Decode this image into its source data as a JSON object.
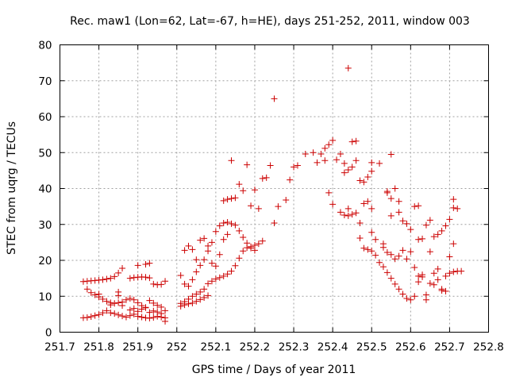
{
  "chart_data": {
    "type": "scatter",
    "title": "Rec. maw1 (Lon=62, Lat=-67, h=HE), days 251-252, 2011, window 003",
    "xlabel": "GPS time / Days of year 2011",
    "ylabel": "STEC from uqrg / TECUs",
    "xlim": [
      251.7,
      252.8
    ],
    "ylim": [
      0,
      80
    ],
    "xticks": [
      "251.7",
      "251.8",
      "251.9",
      "252",
      "252.1",
      "252.2",
      "252.3",
      "252.4",
      "252.5",
      "252.6",
      "252.7",
      "252.8"
    ],
    "yticks": [
      "0",
      "10",
      "20",
      "30",
      "40",
      "50",
      "60",
      "70",
      "80"
    ],
    "grid": true,
    "marker": "+",
    "color": "#cc0000",
    "series": [
      {
        "points": [
          [
            251.76,
            14.1
          ],
          [
            251.77,
            14.2
          ],
          [
            251.78,
            14.3
          ],
          [
            251.79,
            14.4
          ],
          [
            251.8,
            14.5
          ],
          [
            251.81,
            14.6
          ],
          [
            251.82,
            14.8
          ],
          [
            251.83,
            15.0
          ],
          [
            251.84,
            15.5
          ],
          [
            251.85,
            16.5
          ],
          [
            251.86,
            17.8
          ],
          [
            251.88,
            15.0
          ],
          [
            251.89,
            15.2
          ],
          [
            251.9,
            15.3
          ],
          [
            251.91,
            15.4
          ],
          [
            251.92,
            15.3
          ],
          [
            251.93,
            15.1
          ],
          [
            251.94,
            13.4
          ],
          [
            251.95,
            13.2
          ],
          [
            251.96,
            13.3
          ],
          [
            251.97,
            14.2
          ],
          [
            251.9,
            18.6
          ],
          [
            251.92,
            18.9
          ],
          [
            251.93,
            19.2
          ],
          [
            251.77,
            12.0
          ],
          [
            251.78,
            11.0
          ],
          [
            251.79,
            10.4
          ],
          [
            251.8,
            9.8
          ],
          [
            251.8,
            10.6
          ],
          [
            251.81,
            9.2
          ],
          [
            251.82,
            8.6
          ],
          [
            251.83,
            8.2
          ],
          [
            251.83,
            7.6
          ],
          [
            251.84,
            8.0
          ],
          [
            251.85,
            10.2
          ],
          [
            251.85,
            11.2
          ],
          [
            251.86,
            8.4
          ],
          [
            251.87,
            9.0
          ],
          [
            251.88,
            9.4
          ],
          [
            251.89,
            9.0
          ],
          [
            251.9,
            8.2
          ],
          [
            251.91,
            7.4
          ],
          [
            251.92,
            6.8
          ],
          [
            251.93,
            8.8
          ],
          [
            251.94,
            8.1
          ],
          [
            251.95,
            7.5
          ],
          [
            251.96,
            7.0
          ],
          [
            251.97,
            6.0
          ],
          [
            251.76,
            4.0
          ],
          [
            251.77,
            4.1
          ],
          [
            251.78,
            4.3
          ],
          [
            251.79,
            4.6
          ],
          [
            251.8,
            4.9
          ],
          [
            251.81,
            5.4
          ],
          [
            251.82,
            6.0
          ],
          [
            251.83,
            5.4
          ],
          [
            251.84,
            5.2
          ],
          [
            251.85,
            4.8
          ],
          [
            251.86,
            4.5
          ],
          [
            251.87,
            4.2
          ],
          [
            251.88,
            4.6
          ],
          [
            251.89,
            5.0
          ],
          [
            251.9,
            4.4
          ],
          [
            251.91,
            4.2
          ],
          [
            251.92,
            4.0
          ],
          [
            251.93,
            3.9
          ],
          [
            251.94,
            4.1
          ],
          [
            251.95,
            4.4
          ],
          [
            251.96,
            4.2
          ],
          [
            251.97,
            4.0
          ],
          [
            251.85,
            8.2
          ],
          [
            251.86,
            7.4
          ],
          [
            251.88,
            6.2
          ],
          [
            251.89,
            6.6
          ],
          [
            251.9,
            5.8
          ],
          [
            251.91,
            6.4
          ],
          [
            251.92,
            6.9
          ],
          [
            251.93,
            5.5
          ],
          [
            251.94,
            5.9
          ],
          [
            251.95,
            5.6
          ],
          [
            251.96,
            5.2
          ],
          [
            251.97,
            3.0
          ],
          [
            252.01,
            7.2
          ],
          [
            252.02,
            7.6
          ],
          [
            252.03,
            7.9
          ],
          [
            252.04,
            8.1
          ],
          [
            252.05,
            8.6
          ],
          [
            252.06,
            9.1
          ],
          [
            252.07,
            9.6
          ],
          [
            252.08,
            10.2
          ],
          [
            252.01,
            8.0
          ],
          [
            252.02,
            8.5
          ],
          [
            252.03,
            9.2
          ],
          [
            252.04,
            10.0
          ],
          [
            252.05,
            10.6
          ],
          [
            252.06,
            11.2
          ],
          [
            252.07,
            12.0
          ],
          [
            252.08,
            13.5
          ],
          [
            252.09,
            14.2
          ],
          [
            252.1,
            14.8
          ],
          [
            252.11,
            15.2
          ],
          [
            252.12,
            15.6
          ],
          [
            252.13,
            16.2
          ],
          [
            252.14,
            17.0
          ],
          [
            252.15,
            18.5
          ],
          [
            252.16,
            20.6
          ],
          [
            252.17,
            22.6
          ],
          [
            252.18,
            23.5
          ],
          [
            252.19,
            23.8
          ],
          [
            252.2,
            24.2
          ],
          [
            252.21,
            24.6
          ],
          [
            252.22,
            25.4
          ],
          [
            252.01,
            15.8
          ],
          [
            252.02,
            13.4
          ],
          [
            252.03,
            12.8
          ],
          [
            252.04,
            14.6
          ],
          [
            252.05,
            16.8
          ],
          [
            252.06,
            18.6
          ],
          [
            252.07,
            20.2
          ],
          [
            252.08,
            22.6
          ],
          [
            252.09,
            25.0
          ],
          [
            252.1,
            28.0
          ],
          [
            252.11,
            29.6
          ],
          [
            252.12,
            30.4
          ],
          [
            252.13,
            30.6
          ],
          [
            252.14,
            30.2
          ],
          [
            252.15,
            29.8
          ],
          [
            252.16,
            28.2
          ],
          [
            252.17,
            26.4
          ],
          [
            252.18,
            24.8
          ],
          [
            252.19,
            23.4
          ],
          [
            252.2,
            22.8
          ],
          [
            252.02,
            22.8
          ],
          [
            252.03,
            24.0
          ],
          [
            252.04,
            23.0
          ],
          [
            252.05,
            20.2
          ],
          [
            252.06,
            25.6
          ],
          [
            252.07,
            26.1
          ],
          [
            252.08,
            24.0
          ],
          [
            252.09,
            19.2
          ],
          [
            252.1,
            18.4
          ],
          [
            252.11,
            21.6
          ],
          [
            252.12,
            25.8
          ],
          [
            252.13,
            27.2
          ],
          [
            252.12,
            36.6
          ],
          [
            252.13,
            37.0
          ],
          [
            252.14,
            37.2
          ],
          [
            252.15,
            37.4
          ],
          [
            252.16,
            41.2
          ],
          [
            252.17,
            39.4
          ],
          [
            252.18,
            46.6
          ],
          [
            252.19,
            35.2
          ],
          [
            252.2,
            39.6
          ],
          [
            252.21,
            34.4
          ],
          [
            252.22,
            42.8
          ],
          [
            252.23,
            43.0
          ],
          [
            252.24,
            46.4
          ],
          [
            252.25,
            30.4
          ],
          [
            252.26,
            35.0
          ],
          [
            252.28,
            36.8
          ],
          [
            252.29,
            42.4
          ],
          [
            252.14,
            47.8
          ],
          [
            252.25,
            65.0
          ],
          [
            252.3,
            46.0
          ],
          [
            252.31,
            46.4
          ],
          [
            252.33,
            49.6
          ],
          [
            252.35,
            50.0
          ],
          [
            252.36,
            47.2
          ],
          [
            252.37,
            49.6
          ],
          [
            252.38,
            51.2
          ],
          [
            252.38,
            47.8
          ],
          [
            252.39,
            52.2
          ],
          [
            252.39,
            38.8
          ],
          [
            252.4,
            53.4
          ],
          [
            252.4,
            35.6
          ],
          [
            252.41,
            48.0
          ],
          [
            252.42,
            49.6
          ],
          [
            252.43,
            47.0
          ],
          [
            252.43,
            44.4
          ],
          [
            252.44,
            45.2
          ],
          [
            252.44,
            34.4
          ],
          [
            252.45,
            53.0
          ],
          [
            252.45,
            46.0
          ],
          [
            252.46,
            47.8
          ],
          [
            252.46,
            53.2
          ],
          [
            252.47,
            42.2
          ],
          [
            252.48,
            41.8
          ],
          [
            252.49,
            43.2
          ],
          [
            252.5,
            47.2
          ],
          [
            252.5,
            44.8
          ],
          [
            252.42,
            33.4
          ],
          [
            252.43,
            32.6
          ],
          [
            252.44,
            32.4
          ],
          [
            252.45,
            32.8
          ],
          [
            252.46,
            33.2
          ],
          [
            252.47,
            30.4
          ],
          [
            252.48,
            35.8
          ],
          [
            252.49,
            36.4
          ],
          [
            252.5,
            34.4
          ],
          [
            252.5,
            27.8
          ],
          [
            252.51,
            25.8
          ],
          [
            252.44,
            73.5
          ],
          [
            252.47,
            26.2
          ],
          [
            252.48,
            23.4
          ],
          [
            252.49,
            23.0
          ],
          [
            252.5,
            22.6
          ],
          [
            252.51,
            21.4
          ],
          [
            252.52,
            19.4
          ],
          [
            252.53,
            18.2
          ],
          [
            252.54,
            16.6
          ],
          [
            252.55,
            15.0
          ],
          [
            252.56,
            13.4
          ],
          [
            252.57,
            12.0
          ],
          [
            252.58,
            10.6
          ],
          [
            252.59,
            9.4
          ],
          [
            252.6,
            9.0
          ],
          [
            252.61,
            10.0
          ],
          [
            252.62,
            14.0
          ],
          [
            252.63,
            16.0
          ],
          [
            252.64,
            9.0
          ],
          [
            252.65,
            13.6
          ],
          [
            252.66,
            16.4
          ],
          [
            252.67,
            17.6
          ],
          [
            252.68,
            11.6
          ],
          [
            252.69,
            11.4
          ],
          [
            252.7,
            16.4
          ],
          [
            252.71,
            16.8
          ],
          [
            252.72,
            17.0
          ],
          [
            252.73,
            17.0
          ],
          [
            252.52,
            47.0
          ],
          [
            252.53,
            24.6
          ],
          [
            252.54,
            39.2
          ],
          [
            252.54,
            38.8
          ],
          [
            252.55,
            37.2
          ],
          [
            252.55,
            32.4
          ],
          [
            252.56,
            40.0
          ],
          [
            252.57,
            36.4
          ],
          [
            252.57,
            33.4
          ],
          [
            252.58,
            31.0
          ],
          [
            252.59,
            30.2
          ],
          [
            252.6,
            28.6
          ],
          [
            252.61,
            35.0
          ],
          [
            252.62,
            35.2
          ],
          [
            252.62,
            25.8
          ],
          [
            252.63,
            26.0
          ],
          [
            252.64,
            29.8
          ],
          [
            252.65,
            31.2
          ],
          [
            252.66,
            26.6
          ],
          [
            252.67,
            27.2
          ],
          [
            252.68,
            28.2
          ],
          [
            252.69,
            29.6
          ],
          [
            252.7,
            31.4
          ],
          [
            252.71,
            37.0
          ],
          [
            252.71,
            34.6
          ],
          [
            252.72,
            34.4
          ],
          [
            252.55,
            49.5
          ],
          [
            252.53,
            23.6
          ],
          [
            252.54,
            22.2
          ],
          [
            252.55,
            21.6
          ],
          [
            252.56,
            20.4
          ],
          [
            252.57,
            21.2
          ],
          [
            252.58,
            22.8
          ],
          [
            252.59,
            20.4
          ],
          [
            252.6,
            22.4
          ],
          [
            252.61,
            18.0
          ],
          [
            252.62,
            15.6
          ],
          [
            252.63,
            15.4
          ],
          [
            252.64,
            10.4
          ],
          [
            252.65,
            22.4
          ],
          [
            252.66,
            13.2
          ],
          [
            252.67,
            14.6
          ],
          [
            252.68,
            12.0
          ],
          [
            252.69,
            15.6
          ],
          [
            252.7,
            21.0
          ],
          [
            252.71,
            24.6
          ]
        ]
      }
    ]
  }
}
